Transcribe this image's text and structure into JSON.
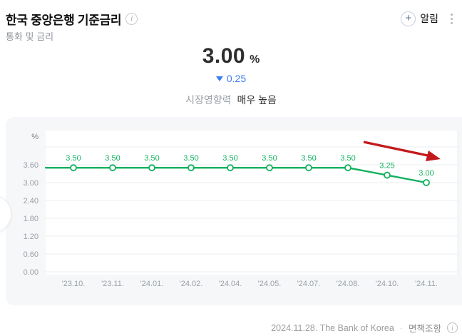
{
  "header": {
    "title": "한국 중앙은행 기준금리",
    "subtitle": "통화 및 금리",
    "alarm_label": "알림"
  },
  "hero": {
    "value": "3.00",
    "unit": "%",
    "change": "0.25",
    "change_direction": "down",
    "impact_label": "시장영향력",
    "impact_value": "매우 높음"
  },
  "chart_data": {
    "type": "line",
    "unit_label": "%",
    "categories": [
      "'23.10.",
      "'23.11.",
      "'24.01.",
      "'24.02.",
      "'24.04.",
      "'24.05.",
      "'24.07.",
      "'24.08.",
      "'24.10.",
      "'24.11."
    ],
    "values": [
      3.5,
      3.5,
      3.5,
      3.5,
      3.5,
      3.5,
      3.5,
      3.5,
      3.25,
      3.0
    ],
    "data_labels": [
      "3.50",
      "3.50",
      "3.50",
      "3.50",
      "3.50",
      "3.50",
      "3.50",
      "3.50",
      "3.25",
      "3.00"
    ],
    "y_ticks": [
      {
        "v": 4.2,
        "label": ""
      },
      {
        "v": 3.6,
        "label": "3.60"
      },
      {
        "v": 3.0,
        "label": "3.00"
      },
      {
        "v": 2.4,
        "label": "2.40"
      },
      {
        "v": 1.8,
        "label": "1.80"
      },
      {
        "v": 1.2,
        "label": "1.20"
      },
      {
        "v": 0.6,
        "label": "0.60"
      },
      {
        "v": 0.0,
        "label": "0.00"
      }
    ],
    "ylim": [
      0,
      4.5
    ],
    "grid": true,
    "legend": "none",
    "line_color": "#11b15e",
    "marker": "hollow-circle",
    "annotation": {
      "type": "down-trend-arrow",
      "color": "#c3191c"
    }
  },
  "footer": {
    "date_source": "2024.11.28. The Bank of Korea",
    "separator": "·",
    "disclaimer": "면책조항"
  },
  "colors": {
    "accent_blue": "#3d7bf5",
    "line_green": "#11b15e",
    "annotation_red": "#c3191c",
    "card_bg": "#f6f7f9"
  }
}
